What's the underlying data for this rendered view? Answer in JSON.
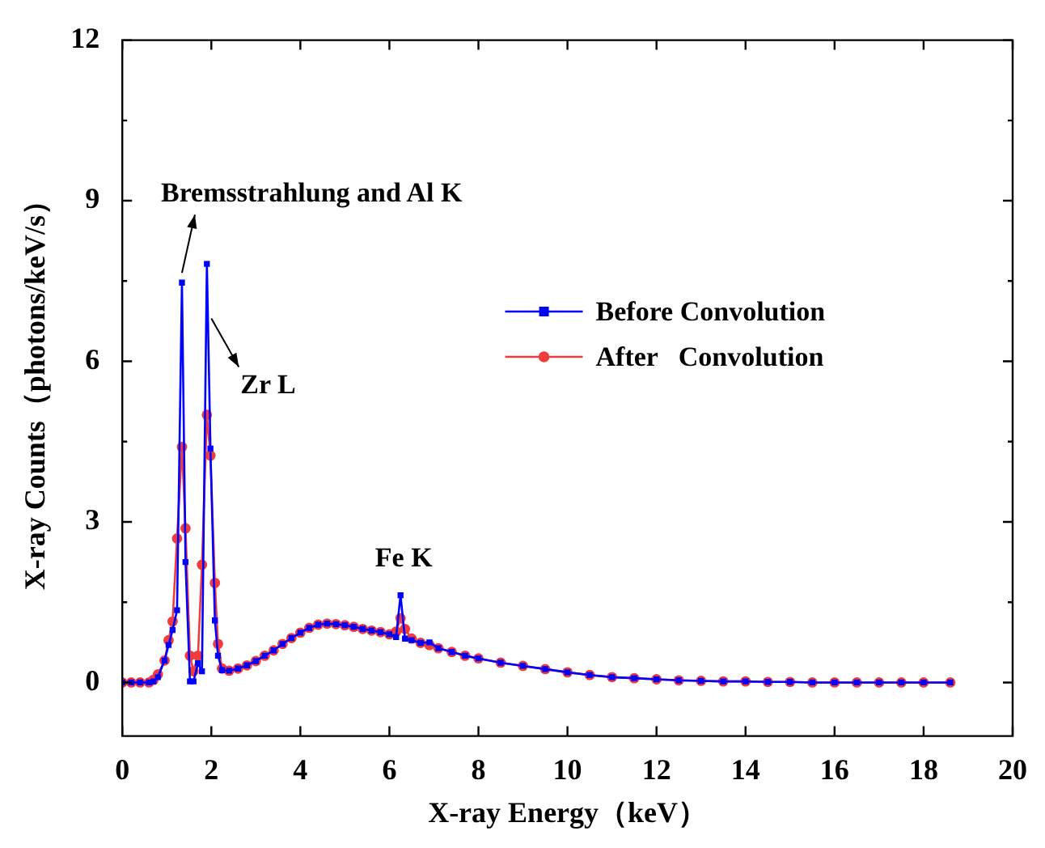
{
  "chart_data": {
    "type": "line",
    "xlabel": "X-ray Energy（keV）",
    "ylabel": "X-ray Counts（photons/keV/s）",
    "x": [
      0,
      0.2,
      0.4,
      0.6,
      0.7,
      0.8,
      0.95,
      1.04,
      1.13,
      1.23,
      1.34,
      1.42,
      1.52,
      1.6,
      1.7,
      1.79,
      1.9,
      1.98,
      2.08,
      2.15,
      2.24,
      2.4,
      2.6,
      2.8,
      3.0,
      3.2,
      3.4,
      3.6,
      3.8,
      4.0,
      4.2,
      4.4,
      4.6,
      4.8,
      5.0,
      5.2,
      5.4,
      5.6,
      5.8,
      6.0,
      6.15,
      6.25,
      6.35,
      6.5,
      6.7,
      6.9,
      7.1,
      7.4,
      7.7,
      8.0,
      8.5,
      9,
      9.5,
      10,
      10.5,
      11,
      11.5,
      12,
      12.5,
      13,
      13.5,
      14,
      14.5,
      15,
      15.5,
      16,
      16.5,
      17,
      17.5,
      18,
      18.6
    ],
    "series": [
      {
        "name": "Before Convolution",
        "color": "#0000ff",
        "marker": "square",
        "values": [
          0,
          0,
          0,
          0,
          0.02,
          0.1,
          0.41,
          0.7,
          0.98,
          1.35,
          7.47,
          2.25,
          0.02,
          0.02,
          0.36,
          0.21,
          7.82,
          4.37,
          1.16,
          0.5,
          0.23,
          0.22,
          0.26,
          0.32,
          0.4,
          0.5,
          0.6,
          0.72,
          0.83,
          0.93,
          1.02,
          1.08,
          1.1,
          1.09,
          1.07,
          1.04,
          1.0,
          0.97,
          0.94,
          0.9,
          0.85,
          1.63,
          0.82,
          0.79,
          0.74,
          0.75,
          0.64,
          0.57,
          0.5,
          0.45,
          0.37,
          0.31,
          0.25,
          0.19,
          0.14,
          0.1,
          0.08,
          0.06,
          0.04,
          0.03,
          0.02,
          0.02,
          0.01,
          0.01,
          0,
          0,
          0,
          0,
          0,
          0,
          0
        ]
      },
      {
        "name": "After   Convolution",
        "color": "#f03c3c",
        "marker": "circle",
        "values": [
          0,
          0,
          0,
          0,
          0.05,
          0.15,
          0.41,
          0.79,
          1.14,
          2.69,
          4.4,
          2.88,
          0.5,
          0.21,
          0.5,
          2.2,
          5.0,
          4.24,
          1.86,
          0.72,
          0.26,
          0.22,
          0.26,
          0.32,
          0.4,
          0.5,
          0.6,
          0.72,
          0.83,
          0.93,
          1.02,
          1.08,
          1.1,
          1.09,
          1.07,
          1.04,
          1.0,
          0.97,
          0.94,
          0.9,
          0.95,
          1.2,
          1.0,
          0.82,
          0.74,
          0.7,
          0.64,
          0.57,
          0.5,
          0.45,
          0.37,
          0.31,
          0.25,
          0.19,
          0.14,
          0.1,
          0.08,
          0.06,
          0.04,
          0.03,
          0.02,
          0.02,
          0.01,
          0.01,
          0,
          0,
          0,
          0,
          0,
          0,
          0
        ]
      }
    ],
    "xlim": [
      0,
      20
    ],
    "xticks": [
      0,
      2,
      4,
      6,
      8,
      10,
      12,
      14,
      16,
      18,
      20
    ],
    "ylim": [
      -1,
      12
    ],
    "yticks": [
      0,
      {
        "value": 1.5,
        "label": null
      },
      3,
      {
        "value": 4.5,
        "label": null
      },
      6,
      {
        "value": 7.5,
        "label": null
      },
      9,
      {
        "value": 10.5,
        "label": null
      },
      12
    ],
    "annotations": [
      {
        "text": "Bremsstrahlung and Al K",
        "x": 1.34,
        "y": 7.47
      },
      "Zr L",
      {
        "text": "Fe K",
        "x": 6.25,
        "y": 1.63
      }
    ],
    "legend": "right",
    "grid": false,
    "line_style": "solid"
  }
}
